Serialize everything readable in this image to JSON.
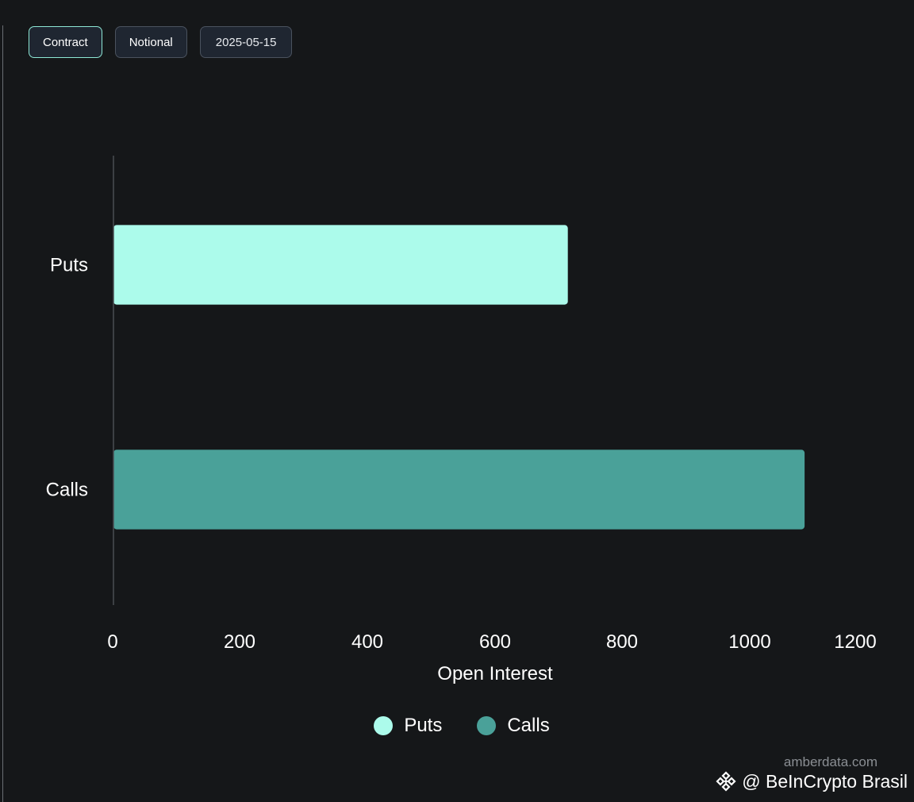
{
  "toggles": [
    {
      "label": "Contract",
      "active": true
    },
    {
      "label": "Notional",
      "active": false
    },
    {
      "label": "2025-05-15",
      "active": false
    }
  ],
  "chart_data": {
    "type": "bar",
    "orientation": "horizontal",
    "categories": [
      "Puts",
      "Calls"
    ],
    "values": [
      735,
      1118
    ],
    "colors": [
      "#acfbeb",
      "#4aa199"
    ],
    "xlabel": "Open Interest",
    "ylabel": "",
    "xlim": [
      0,
      1200
    ],
    "xticks": [
      0,
      200,
      400,
      600,
      800,
      1000,
      1200
    ],
    "grid": false,
    "legend_position": "bottom-center"
  },
  "legend": [
    {
      "label": "Puts",
      "color": "#acfbeb"
    },
    {
      "label": "Calls",
      "color": "#4aa199"
    }
  ],
  "source_label": "amberdata.com",
  "watermark": {
    "label": "@ BeInCrypto Brasil",
    "logo": "beincrypto-logo-icon"
  }
}
